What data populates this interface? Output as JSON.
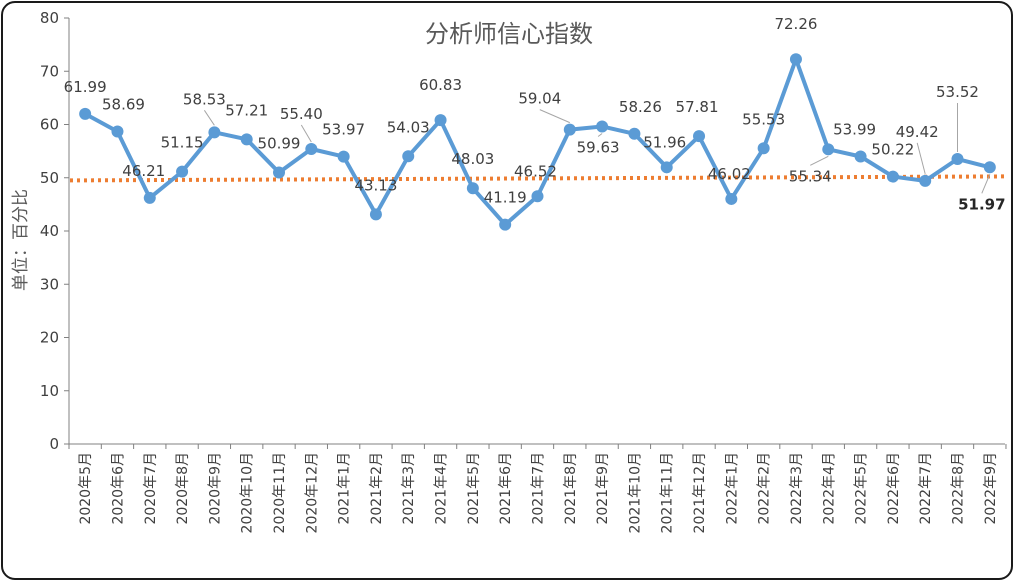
{
  "chart_data": {
    "type": "line",
    "title": "分析师信心指数",
    "ylabel": "单位：百分比",
    "xlabel": "",
    "ylim": [
      0,
      80
    ],
    "yticks": [
      0,
      10,
      20,
      30,
      40,
      50,
      60,
      70,
      80
    ],
    "grid": false,
    "categories": [
      "2020年5月",
      "2020年6月",
      "2020年7月",
      "2020年8月",
      "2020年9月",
      "2020年10月",
      "2020年11月",
      "2020年12月",
      "2021年1月",
      "2021年2月",
      "2021年3月",
      "2021年4月",
      "2021年5月",
      "2021年6月",
      "2021年7月",
      "2021年8月",
      "2021年9月",
      "2021年10月",
      "2021年11月",
      "2021年12月",
      "2022年1月",
      "2022年2月",
      "2022年3月",
      "2022年4月",
      "2022年5月",
      "2022年6月",
      "2022年7月",
      "2022年8月",
      "2022年9月"
    ],
    "series": [
      {
        "values": [
          61.99,
          58.69,
          46.21,
          51.15,
          58.53,
          57.21,
          50.99,
          55.4,
          53.97,
          43.13,
          54.03,
          60.83,
          48.03,
          41.19,
          46.52,
          59.04,
          59.63,
          58.26,
          51.96,
          57.81,
          46.02,
          55.53,
          72.26,
          55.34,
          53.99,
          50.22,
          49.42,
          53.52,
          51.97
        ],
        "labels": [
          "61.99",
          "58.69",
          "46.21",
          "51.15",
          "58.53",
          "57.21",
          "50.99",
          "55.40",
          "53.97",
          "43.13",
          "54.03",
          "60.83",
          "48.03",
          "41.19",
          "46.52",
          "59.04",
          "59.63",
          "58.26",
          "51.96",
          "57.81",
          "46.02",
          "55.53",
          "72.26",
          "55.34",
          "53.99",
          "50.22",
          "49.42",
          "53.52",
          "51.97"
        ],
        "color": "#5B9BD5"
      }
    ],
    "reference_line": {
      "value": 49.5,
      "style": "dotted",
      "color": "#ED7D31"
    }
  }
}
